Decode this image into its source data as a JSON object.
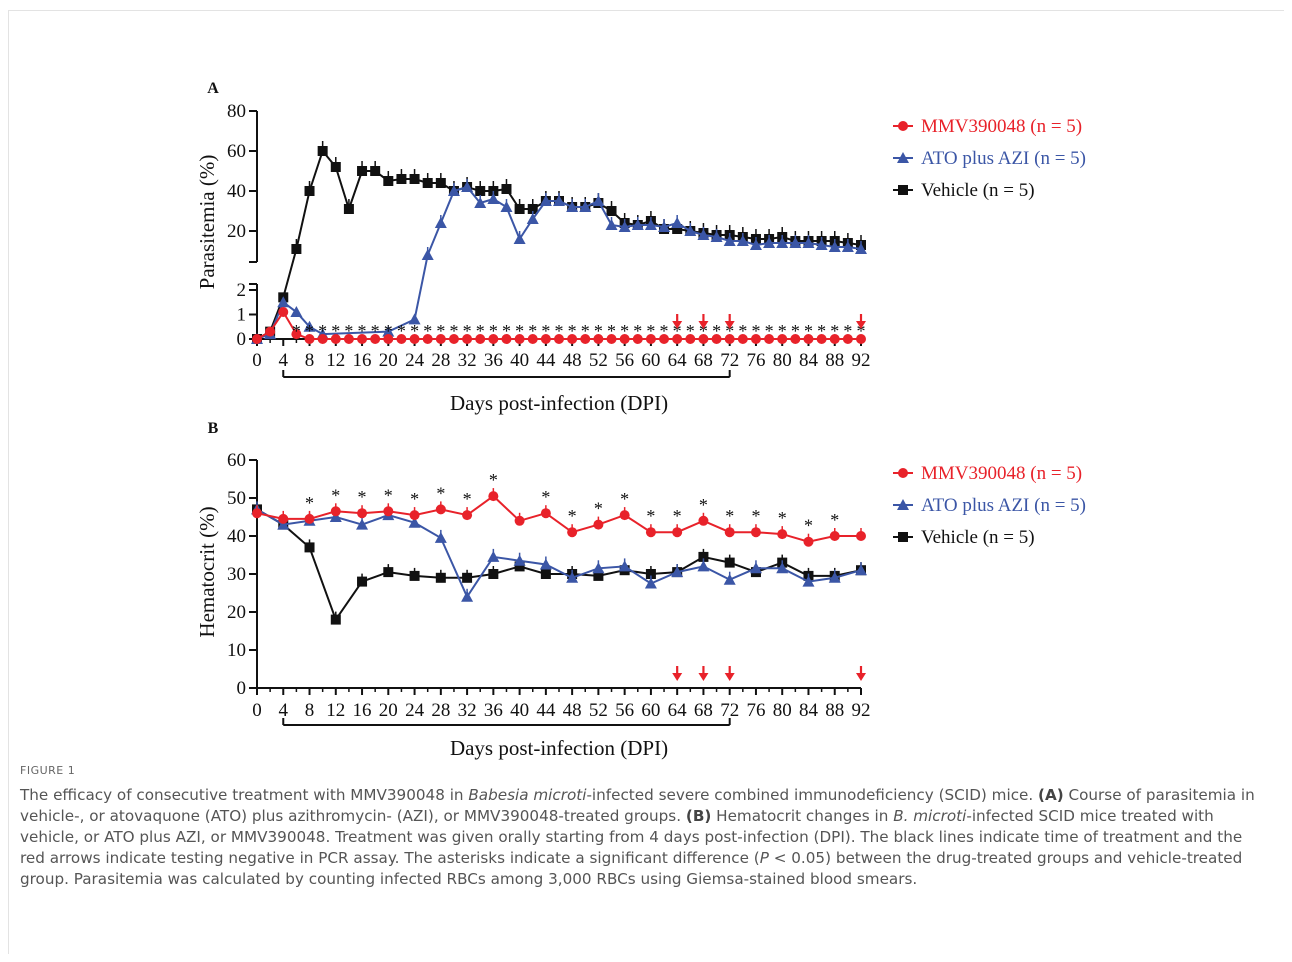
{
  "chart_data": [
    {
      "panel": "A",
      "type": "line",
      "ylabel": "Parasitemia (%)",
      "xlabel": "Days post-infection (DPI)",
      "broken_y_axis": true,
      "y_upper_ticks": [
        20,
        40,
        60,
        80
      ],
      "y_lower_ticks": [
        0,
        1,
        2
      ],
      "x_ticks": [
        0,
        4,
        8,
        12,
        16,
        20,
        24,
        28,
        32,
        36,
        40,
        44,
        48,
        52,
        56,
        60,
        64,
        68,
        72,
        76,
        80,
        84,
        88,
        92
      ],
      "treatment_period": [
        4,
        72
      ],
      "pcr_negative_days": [
        64,
        68,
        72,
        92
      ],
      "series": [
        {
          "name": "MMV390048 (n = 5)",
          "color": "#e8222a",
          "marker": "circle",
          "x": [
            0,
            2,
            4,
            6,
            8,
            10,
            12,
            14,
            16,
            18,
            20,
            22,
            24,
            26,
            28,
            30,
            32,
            34,
            36,
            38,
            40,
            42,
            44,
            46,
            48,
            50,
            52,
            54,
            56,
            58,
            60,
            62,
            64,
            66,
            68,
            70,
            72,
            74,
            76,
            78,
            80,
            82,
            84,
            86,
            88,
            90,
            92
          ],
          "values": [
            0,
            0.3,
            1.1,
            0.2,
            0,
            0,
            0,
            0,
            0,
            0,
            0,
            0,
            0,
            0,
            0,
            0,
            0,
            0,
            0,
            0,
            0,
            0,
            0,
            0,
            0,
            0,
            0,
            0,
            0,
            0,
            0,
            0,
            0,
            0,
            0,
            0,
            0,
            0,
            0,
            0,
            0,
            0,
            0,
            0,
            0,
            0,
            0
          ]
        },
        {
          "name": "ATO plus AZI (n = 5)",
          "color": "#3b56a6",
          "marker": "triangle",
          "x": [
            0,
            2,
            4,
            6,
            8,
            10,
            20,
            24,
            26,
            28,
            30,
            32,
            34,
            36,
            38,
            40,
            42,
            44,
            46,
            48,
            50,
            52,
            54,
            56,
            58,
            60,
            62,
            64,
            66,
            68,
            70,
            72,
            74,
            76,
            78,
            80,
            82,
            84,
            86,
            88,
            90,
            92
          ],
          "values": [
            0,
            0.2,
            1.5,
            1.1,
            0.5,
            0.2,
            0.3,
            0.8,
            8,
            24,
            40,
            42,
            34,
            36,
            32,
            16,
            26,
            35,
            35,
            32,
            32,
            35,
            23,
            22,
            23,
            23,
            22,
            24,
            20,
            18,
            17,
            15,
            15,
            13,
            14,
            14,
            14,
            14,
            13,
            12,
            12,
            11
          ]
        },
        {
          "name": "Vehicle (n = 5)",
          "color": "#111111",
          "marker": "square",
          "x": [
            0,
            2,
            4,
            6,
            8,
            10,
            12,
            14,
            16,
            18,
            20,
            22,
            24,
            26,
            28,
            30,
            32,
            34,
            36,
            38,
            40,
            42,
            44,
            46,
            48,
            50,
            52,
            54,
            56,
            58,
            60,
            62,
            64,
            66,
            68,
            70,
            72,
            74,
            76,
            78,
            80,
            82,
            84,
            86,
            88,
            90,
            92
          ],
          "values": [
            0,
            0.3,
            1.7,
            11,
            40,
            60,
            52,
            31,
            50,
            50,
            45,
            46,
            46,
            44,
            44,
            40,
            42,
            40,
            40,
            41,
            31,
            31,
            35,
            35,
            32,
            32,
            34,
            30,
            24,
            23,
            25,
            21,
            21,
            20,
            19,
            18,
            18,
            17,
            16,
            16,
            17,
            15,
            15,
            15,
            15,
            14,
            13
          ]
        }
      ]
    },
    {
      "panel": "B",
      "type": "line",
      "ylabel": "Hematocrit (%)",
      "xlabel": "Days post-infection (DPI)",
      "ylim": [
        0,
        60
      ],
      "y_ticks": [
        0,
        10,
        20,
        30,
        40,
        50,
        60
      ],
      "x_ticks": [
        0,
        4,
        8,
        12,
        16,
        20,
        24,
        28,
        32,
        36,
        40,
        44,
        48,
        52,
        56,
        60,
        64,
        68,
        72,
        76,
        80,
        84,
        88,
        92
      ],
      "treatment_period": [
        4,
        72
      ],
      "pcr_negative_days": [
        64,
        68,
        72,
        92
      ],
      "series": [
        {
          "name": "MMV390048 (n = 5)",
          "color": "#e8222a",
          "marker": "circle",
          "x": [
            0,
            4,
            8,
            12,
            16,
            20,
            24,
            28,
            32,
            36,
            40,
            44,
            48,
            52,
            56,
            60,
            64,
            68,
            72,
            76,
            80,
            84,
            88,
            92
          ],
          "values": [
            46,
            44.5,
            44.5,
            46.5,
            46,
            46.5,
            45.5,
            47,
            45.5,
            50.5,
            44,
            46,
            41,
            43,
            45.5,
            41,
            41,
            44,
            41,
            41,
            40.5,
            38.5,
            40,
            40
          ]
        },
        {
          "name": "ATO plus AZI (n = 5)",
          "color": "#3b56a6",
          "marker": "triangle",
          "x": [
            0,
            4,
            8,
            12,
            16,
            20,
            24,
            28,
            32,
            36,
            40,
            44,
            48,
            52,
            56,
            60,
            64,
            68,
            72,
            76,
            80,
            84,
            88,
            92
          ],
          "values": [
            47,
            43,
            44,
            45,
            43,
            45.5,
            43.5,
            39.5,
            24,
            34.5,
            33.5,
            32.5,
            29,
            31.5,
            32,
            27.5,
            30.5,
            32,
            28.5,
            31.5,
            31.5,
            28,
            29,
            31
          ]
        },
        {
          "name": "Vehicle (n = 5)",
          "color": "#111111",
          "marker": "square",
          "x": [
            0,
            4,
            8,
            12,
            16,
            20,
            24,
            28,
            32,
            36,
            40,
            44,
            48,
            52,
            56,
            60,
            64,
            68,
            72,
            76,
            80,
            84,
            88,
            92
          ],
          "values": [
            47,
            43,
            37,
            18,
            28,
            30.5,
            29.5,
            29,
            29,
            30,
            32,
            30,
            30,
            29.5,
            31,
            30,
            30.5,
            34.5,
            33,
            30.5,
            33,
            29.5,
            29.5,
            31
          ]
        }
      ],
      "significant_days": [
        8,
        12,
        16,
        20,
        24,
        28,
        32,
        36,
        44,
        48,
        52,
        56,
        60,
        64,
        68,
        72,
        76,
        80,
        84,
        88
      ]
    }
  ],
  "panels": {
    "a_label": "A",
    "b_label": "B",
    "a_ylabel": "Parasitemia (%)",
    "b_ylabel": "Hematocrit (%)",
    "xlabel": "Days post-infection (DPI)",
    "asterisk": "*"
  },
  "legend": {
    "items": [
      "MMV390048 (n = 5)",
      "ATO plus AZI (n = 5)",
      "Vehicle (n = 5)"
    ]
  },
  "caption": {
    "label": "FIGURE 1",
    "s1": "The efficacy of consecutive treatment with MMV390048 in ",
    "s1_em": "Babesia microti",
    "s2": "-infected severe combined immunodeficiency (SCID) mice. ",
    "s2_b": "(A)",
    "s3": " Course of parasitemia in vehicle-, or atovaquone (ATO) plus azithromycin- (AZI), or MMV390048-treated groups. ",
    "s3_b": "(B)",
    "s4": " Hematocrit changes in ",
    "s4_em": "B. microti",
    "s5": "-infected SCID mice treated with vehicle, or ATO plus AZI, or MMV390048. Treatment was given orally starting from 4 days post-infection (DPI). The black lines indicate time of treatment and the red arrows indicate testing negative in PCR assay. The asterisks indicate a significant difference (",
    "s5_em": "P",
    "s6": " < 0.05) between the drug-treated groups and vehicle-treated group. Parasitemia was calculated by counting infected RBCs among 3,000 RBCs using Giemsa-stained blood smears."
  }
}
